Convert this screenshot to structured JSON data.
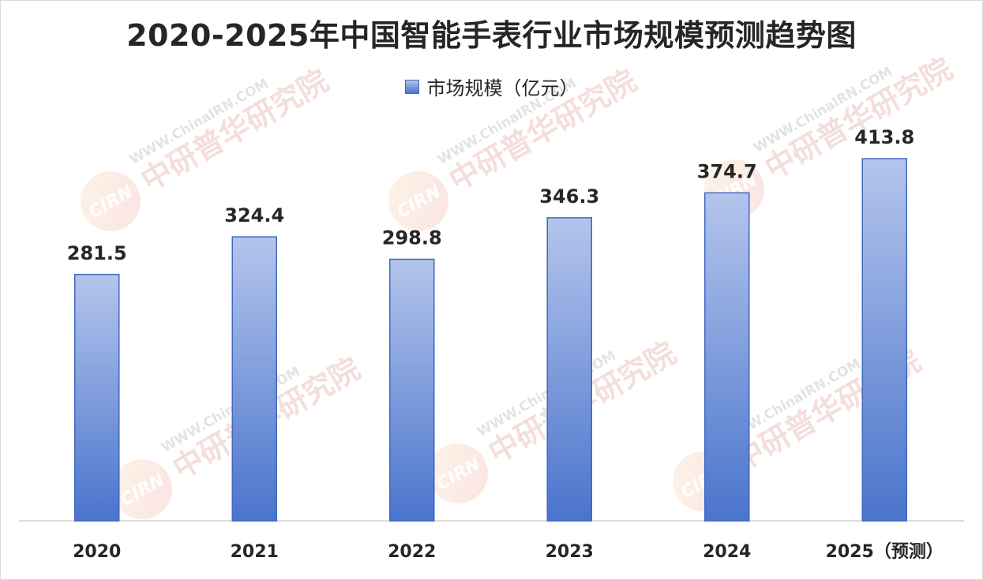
{
  "chart_data": {
    "type": "bar",
    "title": "2020-2025年中国智能手表行业市场规模预测趋势图",
    "legend": "市场规模（亿元）",
    "legend_position": "top",
    "categories": [
      "2020",
      "2021",
      "2022",
      "2023",
      "2024",
      "2025（预测）"
    ],
    "series": [
      {
        "name": "市场规模（亿元）",
        "values": [
          281.5,
          324.4,
          298.8,
          346.3,
          374.7,
          413.8
        ]
      }
    ],
    "data_labels": [
      "281.5",
      "324.4",
      "298.8",
      "346.3",
      "374.7",
      "413.8"
    ],
    "ylim": [
      0,
      420
    ],
    "grid": false,
    "xlabel": "",
    "ylabel": ""
  },
  "watermark": {
    "logo_text": "CIRN",
    "brand_text": "中研普华研究院",
    "site_text": "WWW.ChinaIRN.COM"
  },
  "colors": {
    "bar_top": "#b4c5ec",
    "bar_bottom": "#4a74cc",
    "bar_edge": "#3f67c2",
    "text": "#262626",
    "axis": "#d0d0d0"
  }
}
